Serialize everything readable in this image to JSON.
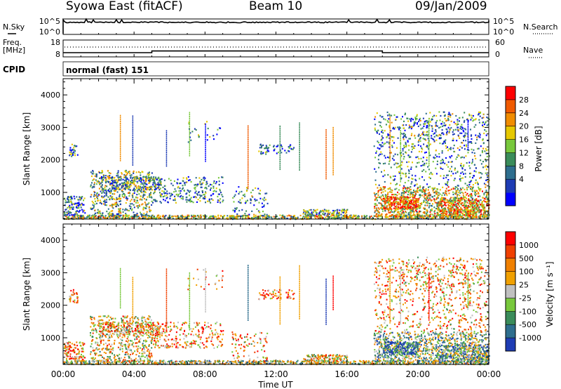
{
  "header": {
    "station": "Syowa East (fitACF)",
    "beam": "Beam 10",
    "date": "09/Jan/2009"
  },
  "noise_panel": {
    "left_label": "N.Sky",
    "right_label": "N.Search",
    "right_style": "dotted",
    "yticks": [
      "10^5",
      "10^0"
    ]
  },
  "freq_panel": {
    "left_label_1": "Freq.",
    "left_label_2": "[MHz]",
    "right_label": "Nave",
    "right_style": "dotted",
    "left_ticks": [
      "18",
      "8"
    ],
    "right_ticks": [
      "60",
      "0"
    ]
  },
  "cpid": {
    "label": "CPID",
    "value": "normal (fast) 151"
  },
  "power_colorbar": {
    "title": "Power [dB]",
    "ticks": [
      "28",
      "24",
      "20",
      "16",
      "12",
      "8",
      "4"
    ],
    "colors": [
      "#0000ff",
      "#1e3cb4",
      "#2e6e8e",
      "#3a8c5a",
      "#78c83c",
      "#e6c800",
      "#f08c00",
      "#f05a00",
      "#ff0000"
    ]
  },
  "velocity_colorbar": {
    "title": "Velocity [m s⁻¹]",
    "ticks": [
      "1000",
      "500",
      "100",
      "25",
      "-25",
      "-100",
      "-500",
      "-1000"
    ],
    "colors": [
      "#1e3cb4",
      "#2e6e8e",
      "#3a8c5a",
      "#78c83c",
      "#c0c0c0",
      "#f0a000",
      "#f08000",
      "#f04000",
      "#ff0000"
    ]
  },
  "axes": {
    "ylabel": "Slant Range [km]",
    "yticks": [
      "4000",
      "3000",
      "2000",
      "1000"
    ],
    "xticks": [
      "00:00",
      "04:00",
      "08:00",
      "12:00",
      "16:00",
      "20:00",
      "00:00"
    ],
    "xlabel": "Time UT"
  },
  "chart_data": [
    {
      "type": "line",
      "title": "N.Sky / N.Search",
      "x": [
        0,
        4,
        8,
        12,
        16,
        20,
        24
      ],
      "series": [
        {
          "name": "N.Sky",
          "values": [
            100000,
            100000,
            100000,
            100000,
            100000,
            100000,
            100000
          ]
        }
      ],
      "ylim": [
        1,
        100000
      ],
      "yscale": "log"
    },
    {
      "type": "line",
      "title": "Freq. [MHz] / Nave",
      "x": [
        0,
        5,
        5,
        18,
        18,
        24
      ],
      "series": [
        {
          "name": "Freq.",
          "values": [
            10.5,
            10.5,
            11.5,
            11.5,
            10.5,
            10.5
          ]
        }
      ],
      "ylim": [
        8,
        18
      ]
    },
    {
      "type": "heatmap",
      "title": "Power [dB]",
      "xlabel": "Time UT",
      "ylabel": "Slant Range [km]",
      "xlim": [
        0,
        24
      ],
      "ylim": [
        180,
        4500
      ],
      "zlim": [
        0,
        30
      ]
    },
    {
      "type": "heatmap",
      "title": "Velocity [m s⁻¹]",
      "xlabel": "Time UT",
      "ylabel": "Slant Range [km]",
      "xlim": [
        0,
        24
      ],
      "ylim": [
        180,
        4500
      ],
      "zlim": [
        -1000,
        1000
      ]
    }
  ]
}
